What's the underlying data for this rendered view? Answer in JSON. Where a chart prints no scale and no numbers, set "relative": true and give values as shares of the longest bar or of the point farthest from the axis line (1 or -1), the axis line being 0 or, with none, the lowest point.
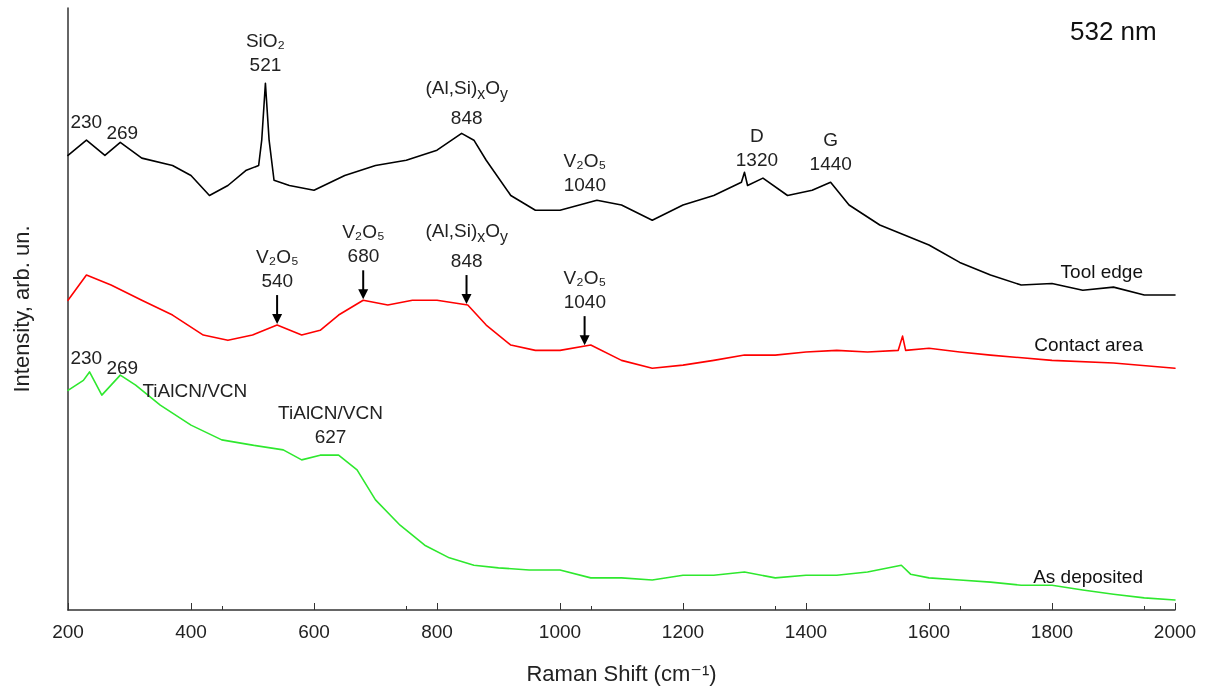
{
  "chart_data": {
    "type": "line",
    "relative": true,
    "xlabel": "Raman Shift (cm⁻¹)",
    "ylabel": "Intensity, arb. un.",
    "xlim": [
      200,
      2000
    ],
    "xticks": [
      200,
      400,
      600,
      800,
      1000,
      1200,
      1400,
      1600,
      1800,
      2000
    ],
    "grid": false,
    "legend": false,
    "marker": "none",
    "line_style": "solid",
    "series": [
      {
        "name": "Tool edge",
        "color": "#000000",
        "x": [
          200,
          230,
          260,
          285,
          320,
          370,
          400,
          430,
          460,
          490,
          510,
          515,
          521,
          527,
          535,
          560,
          600,
          650,
          700,
          750,
          800,
          840,
          860,
          880,
          920,
          960,
          1000,
          1060,
          1100,
          1150,
          1200,
          1250,
          1295,
          1300,
          1305,
          1330,
          1370,
          1410,
          1440,
          1470,
          1520,
          1560,
          1600,
          1650,
          1700,
          1750,
          1800,
          1850,
          1900,
          1950,
          2000
        ],
        "values": [
          0.863,
          0.892,
          0.863,
          0.888,
          0.858,
          0.844,
          0.825,
          0.787,
          0.806,
          0.835,
          0.844,
          0.892,
          1,
          0.892,
          0.816,
          0.806,
          0.797,
          0.825,
          0.844,
          0.854,
          0.873,
          0.905,
          0.892,
          0.854,
          0.787,
          0.759,
          0.759,
          0.778,
          0.769,
          0.74,
          0.769,
          0.787,
          0.812,
          0.831,
          0.806,
          0.82,
          0.787,
          0.797,
          0.812,
          0.769,
          0.731,
          0.712,
          0.693,
          0.66,
          0.636,
          0.617,
          0.62,
          0.607,
          0.613,
          0.598,
          0.598
        ]
      },
      {
        "name": "Contact area",
        "color": "#ff0000",
        "x": [
          200,
          230,
          270,
          320,
          370,
          420,
          460,
          500,
          540,
          580,
          610,
          640,
          680,
          720,
          760,
          800,
          850,
          880,
          920,
          960,
          1000,
          1050,
          1100,
          1150,
          1200,
          1250,
          1300,
          1350,
          1400,
          1450,
          1500,
          1550,
          1557,
          1562,
          1600,
          1650,
          1700,
          1800,
          1900,
          2000
        ],
        "values": [
          0.588,
          0.636,
          0.617,
          0.588,
          0.56,
          0.522,
          0.512,
          0.522,
          0.541,
          0.522,
          0.531,
          0.56,
          0.588,
          0.579,
          0.588,
          0.588,
          0.579,
          0.541,
          0.503,
          0.493,
          0.493,
          0.503,
          0.474,
          0.459,
          0.465,
          0.474,
          0.484,
          0.484,
          0.49,
          0.493,
          0.49,
          0.493,
          0.52,
          0.493,
          0.497,
          0.49,
          0.484,
          0.474,
          0.469,
          0.459
        ]
      },
      {
        "name": "As deposited",
        "color": "#2ee82e",
        "x": [
          200,
          225,
          235,
          255,
          270,
          285,
          310,
          350,
          400,
          450,
          500,
          550,
          580,
          610,
          640,
          670,
          700,
          740,
          780,
          820,
          860,
          900,
          950,
          1000,
          1050,
          1100,
          1150,
          1200,
          1250,
          1300,
          1350,
          1400,
          1450,
          1500,
          1555,
          1570,
          1600,
          1650,
          1700,
          1750,
          1800,
          1850,
          1900,
          1950,
          2000
        ],
        "values": [
          0.417,
          0.436,
          0.452,
          0.408,
          0.427,
          0.446,
          0.427,
          0.389,
          0.351,
          0.323,
          0.313,
          0.304,
          0.285,
          0.294,
          0.294,
          0.266,
          0.209,
          0.161,
          0.123,
          0.099,
          0.085,
          0.08,
          0.076,
          0.076,
          0.061,
          0.061,
          0.057,
          0.066,
          0.066,
          0.072,
          0.061,
          0.066,
          0.066,
          0.072,
          0.085,
          0.068,
          0.061,
          0.057,
          0.053,
          0.047,
          0.047,
          0.038,
          0.03,
          0.023,
          0.019
        ]
      }
    ],
    "annotations": [
      "532 nm",
      {
        "text": "230",
        "x": 230,
        "y": 0.892
      },
      {
        "text": "269",
        "x": 269,
        "y": 0.872
      },
      {
        "text": "SiO₂\n521",
        "x": 521,
        "y": 1
      },
      {
        "text": "(Al,Si)$_{x}$O$_{y}$\n848",
        "x": 848,
        "y": 0.9
      },
      {
        "text": "V₂O₅\n1040",
        "x": 1040,
        "y": 0.772
      },
      {
        "text": "D\n1320",
        "x": 1320,
        "y": 0.82
      },
      {
        "text": "G\n1440",
        "x": 1440,
        "y": 0.812
      },
      {
        "text": "V₂O₅\n540",
        "x": 540,
        "y": 0.541
      },
      {
        "text": "V₂O₅\n680",
        "x": 680,
        "y": 0.588
      },
      {
        "text": "(Al,Si)$_{x}$O$_{y}$\n848",
        "x": 848,
        "y": 0.579
      },
      {
        "text": "V₂O₅\n1040",
        "x": 1040,
        "y": 0.501
      },
      {
        "text": "230",
        "x": 230,
        "y": 0.444
      },
      {
        "text": "269",
        "x": 269,
        "y": 0.426
      },
      {
        "text": "TiAlCN/VCN",
        "x": 358,
        "y": 0.381
      },
      {
        "text": "TiAlCN/VCN\n627",
        "x": 627,
        "y": 0.294
      }
    ]
  }
}
